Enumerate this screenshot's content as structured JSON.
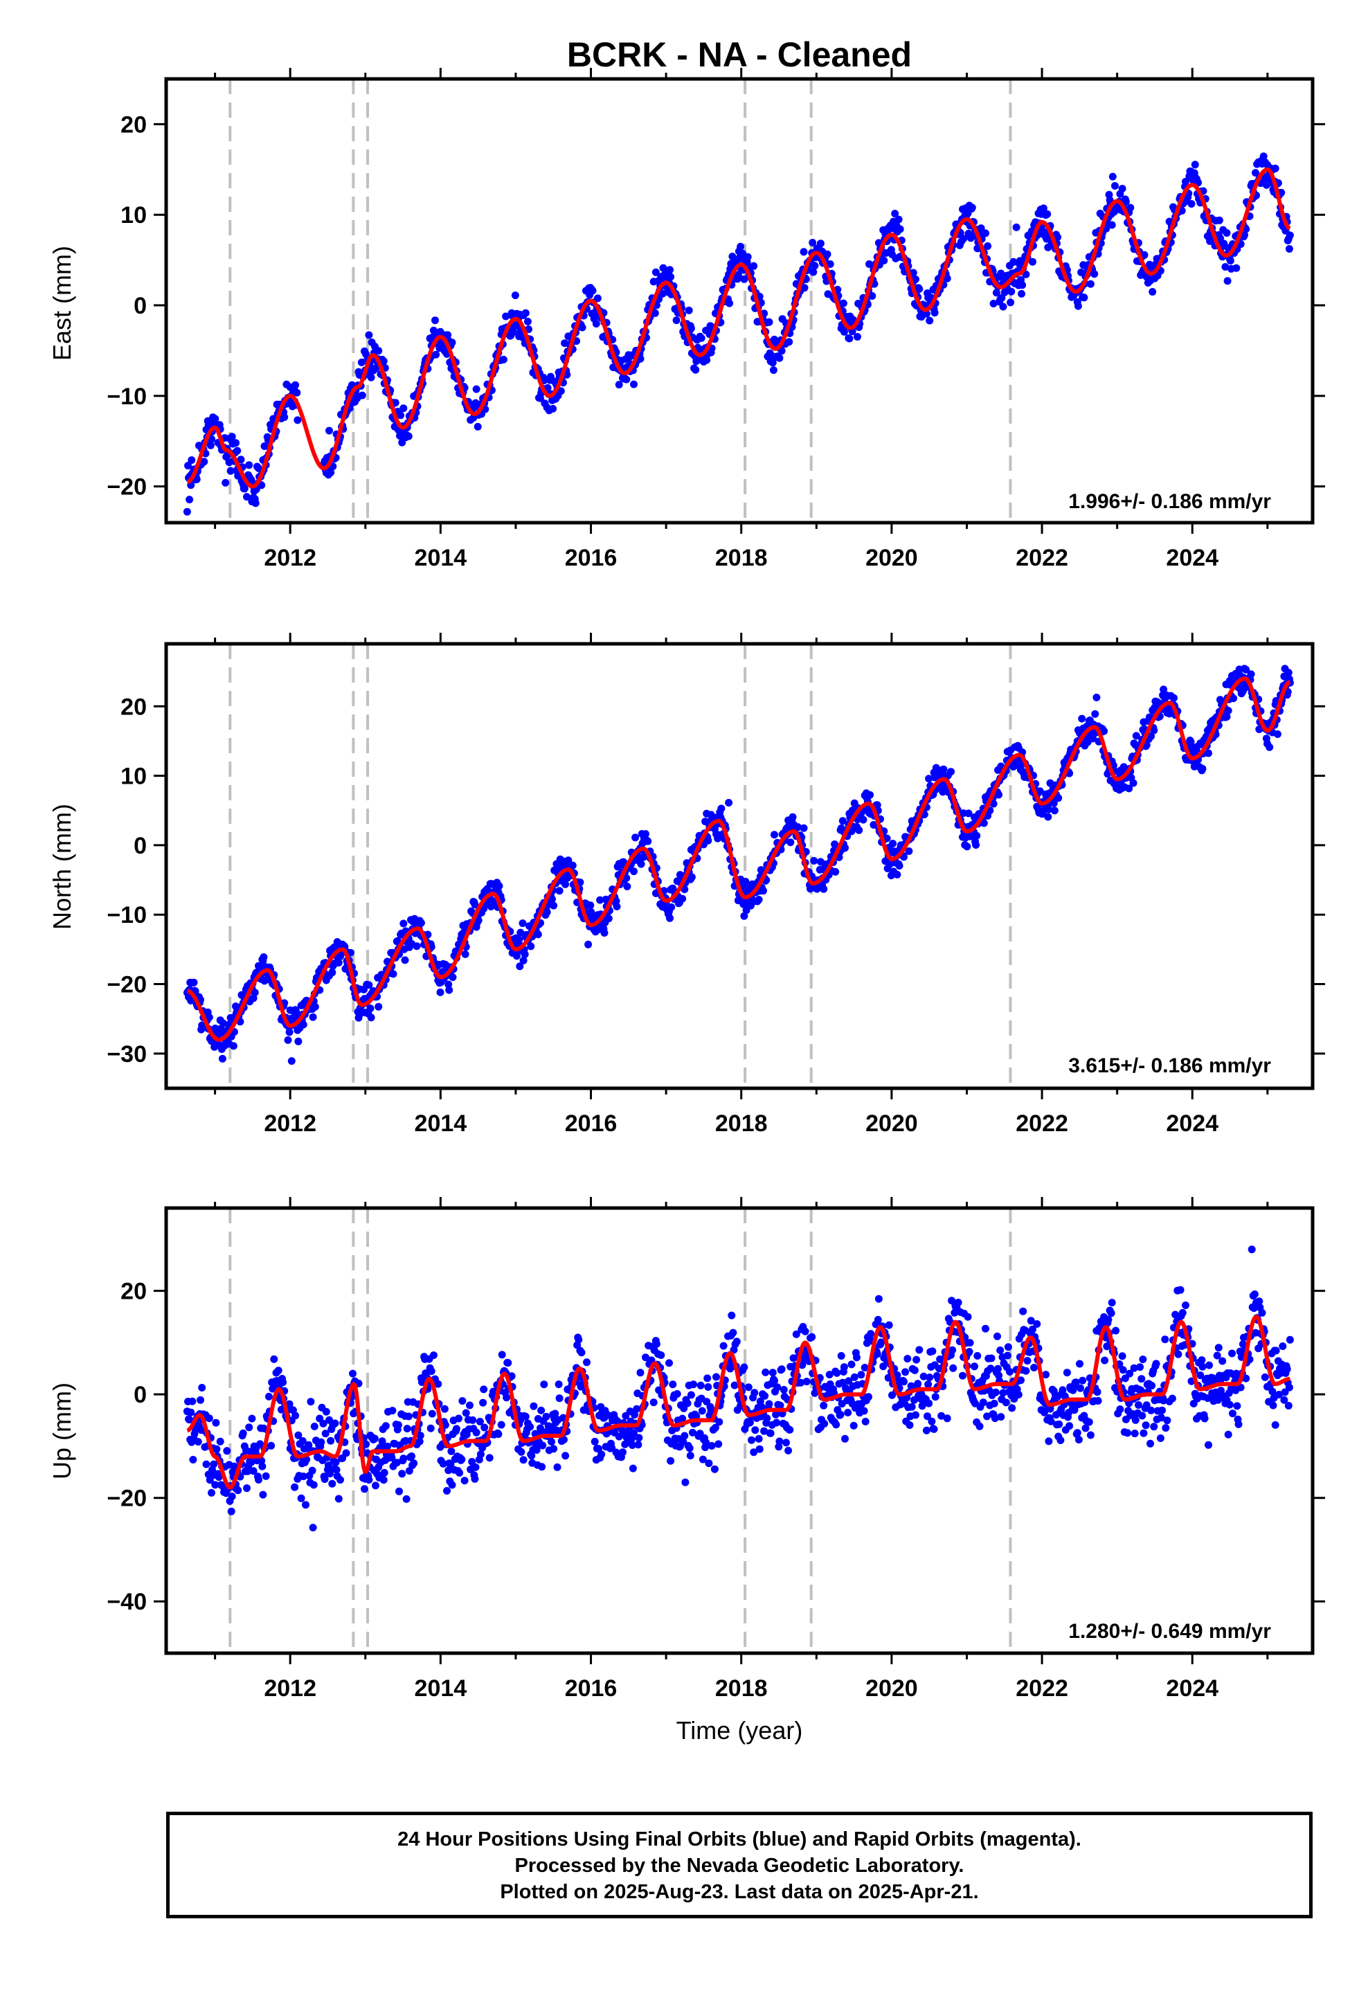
{
  "chart_data": {
    "type": "scatter",
    "title": "BCRK  - NA - Cleaned",
    "xlabel": "Time (year)",
    "xlim": [
      2010.35,
      2025.6
    ],
    "xticks": [
      2012,
      2014,
      2016,
      2018,
      2020,
      2022,
      2024
    ],
    "equipment_change_epochs": [
      2011.2,
      2012.84,
      2013.03,
      2018.05,
      2018.93,
      2021.58
    ],
    "point_color": "#0000ff",
    "fit_color": "#ff0000",
    "panels": [
      {
        "ylabel": "East (mm)",
        "ylim": [
          -24,
          25
        ],
        "yticks": [
          -20,
          -10,
          0,
          10,
          20
        ],
        "rate": "1.996+/- 0.186 mm/yr",
        "fit": {
          "x": [
            2010.63,
            2011.0,
            2011.15,
            2011.5,
            2012.0,
            2012.45,
            2012.9,
            2013.1,
            2013.5,
            2014.0,
            2014.45,
            2015.0,
            2015.45,
            2016.0,
            2016.45,
            2017.0,
            2017.45,
            2018.0,
            2018.45,
            2019.0,
            2019.45,
            2020.0,
            2020.45,
            2021.0,
            2021.45,
            2021.7,
            2022.0,
            2022.45,
            2023.0,
            2023.45,
            2024.0,
            2024.45,
            2025.0,
            2025.3
          ],
          "y": [
            -19.5,
            -13.5,
            -16,
            -20,
            -10,
            -18,
            -9,
            -5.5,
            -13.5,
            -3.5,
            -12,
            -1.5,
            -10,
            0.5,
            -7.5,
            2.5,
            -5.5,
            4.5,
            -4.8,
            5.8,
            -2.5,
            7.8,
            -0.5,
            9.5,
            2,
            3.5,
            9.2,
            1.5,
            11.5,
            3.5,
            13.3,
            5.5,
            15,
            8.5
          ]
        }
      },
      {
        "ylabel": "North (mm)",
        "ylim": [
          -35,
          29
        ],
        "yticks": [
          -30,
          -20,
          -10,
          0,
          10,
          20
        ],
        "rate": "3.615+/- 0.186 mm/yr",
        "fit": {
          "x": [
            2010.63,
            2011.05,
            2011.7,
            2012.0,
            2012.7,
            2012.95,
            2013.7,
            2014.0,
            2014.7,
            2015.0,
            2015.7,
            2016.0,
            2016.7,
            2017.0,
            2017.7,
            2018.05,
            2018.7,
            2018.95,
            2019.7,
            2020.0,
            2020.7,
            2021.0,
            2021.7,
            2022.0,
            2022.7,
            2023.0,
            2023.7,
            2024.0,
            2024.7,
            2025.0,
            2025.3
          ],
          "y": [
            -21,
            -28,
            -18,
            -26,
            -15,
            -23,
            -12,
            -19,
            -7,
            -15,
            -3.5,
            -11.5,
            -0.5,
            -8,
            3.5,
            -7.5,
            2,
            -5.5,
            6,
            -2,
            9.5,
            2,
            13,
            6,
            17,
            9.5,
            20.5,
            12.5,
            24,
            16.5,
            23.5
          ]
        }
      },
      {
        "ylabel": "Up (mm)",
        "ylim": [
          -50,
          36
        ],
        "yticks": [
          -40,
          -20,
          0,
          20
        ],
        "rate": "1.280+/- 0.649 mm/yr",
        "fit": {
          "x": [
            2010.63,
            2010.8,
            2011.0,
            2011.2,
            2011.4,
            2011.6,
            2011.85,
            2012.1,
            2012.4,
            2012.6,
            2012.85,
            2013.0,
            2013.1,
            2013.4,
            2013.6,
            2013.85,
            2014.1,
            2014.4,
            2014.6,
            2014.85,
            2015.1,
            2015.4,
            2015.6,
            2015.85,
            2016.1,
            2016.4,
            2016.6,
            2016.85,
            2017.1,
            2017.4,
            2017.6,
            2017.85,
            2018.1,
            2018.4,
            2018.6,
            2018.85,
            2019.1,
            2019.4,
            2019.6,
            2019.85,
            2020.1,
            2020.4,
            2020.6,
            2020.85,
            2021.1,
            2021.4,
            2021.6,
            2021.85,
            2022.1,
            2022.4,
            2022.6,
            2022.85,
            2023.1,
            2023.4,
            2023.6,
            2023.85,
            2024.1,
            2024.4,
            2024.6,
            2024.85,
            2025.1,
            2025.3
          ],
          "y": [
            -7,
            -4,
            -12,
            -18,
            -12,
            -12,
            1,
            -12,
            -11,
            -12,
            2,
            -15,
            -11,
            -11,
            -10,
            3,
            -10,
            -9,
            -9,
            4,
            -9,
            -8,
            -8,
            5,
            -7,
            -6,
            -6,
            6,
            -6,
            -5,
            -5,
            8,
            -4,
            -3,
            -3,
            10,
            -1,
            0,
            0,
            13,
            0,
            1,
            1,
            14,
            1,
            2,
            2,
            11,
            -2,
            -1,
            -1,
            13,
            -1,
            0,
            0,
            14,
            1,
            2,
            2,
            15,
            2,
            3
          ]
        }
      }
    ]
  },
  "footer": {
    "line1": "24 Hour Positions Using Final Orbits (blue) and Rapid Orbits (magenta).",
    "line2": "Processed by the Nevada Geodetic Laboratory.",
    "line3": "Plotted on 2025-Aug-23. Last data on 2025-Apr-21."
  }
}
